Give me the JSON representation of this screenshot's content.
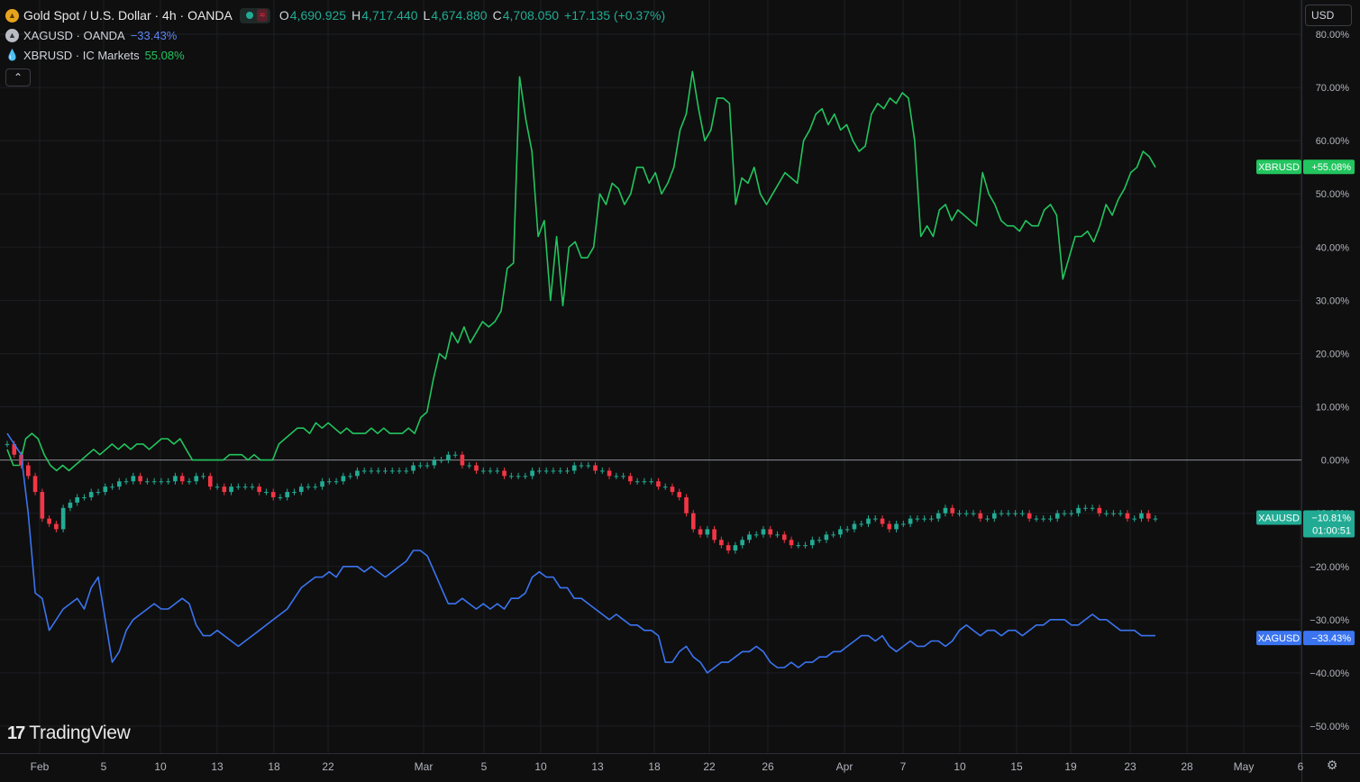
{
  "legend": {
    "main": {
      "title": "Gold Spot / U.S. Dollar · 4h · OANDA",
      "o_key": "O",
      "o_val": "4,690.925",
      "h_key": "H",
      "h_val": "4,717.440",
      "l_key": "L",
      "l_val": "4,674.880",
      "c_key": "C",
      "c_val": "4,708.050",
      "change": "+17.135 (+0.37%)",
      "wave": "≈"
    },
    "xag": {
      "title": "XAGUSD · OANDA",
      "pct": "−33.43%"
    },
    "xbr": {
      "title": "XBRUSD · IC Markets",
      "pct": "55.08%"
    },
    "collapse": "⌃"
  },
  "currency_button": "USD",
  "logo": {
    "mark": "17",
    "text": "TradingView"
  },
  "settings_icon": "gear-icon",
  "colors": {
    "background": "#0f0f0f",
    "xbr": "#22c55e",
    "xag": "#3b74f0",
    "up": "#22ab94",
    "down": "#f23645"
  },
  "chart_data": {
    "type": "line",
    "y_unit": "%",
    "ylim": [
      -50,
      80
    ],
    "y_ticks": [
      "80.00%",
      "70.00%",
      "60.00%",
      "50.00%",
      "40.00%",
      "30.00%",
      "20.00%",
      "10.00%",
      "0.00%",
      "−10.00%",
      "−20.00%",
      "−30.00%",
      "−40.00%",
      "−50.00%"
    ],
    "x_ticks": [
      "Feb",
      "5",
      "10",
      "13",
      "18",
      "22",
      "Mar",
      "5",
      "10",
      "13",
      "18",
      "22",
      "26",
      "Apr",
      "7",
      "10",
      "15",
      "19",
      "23",
      "28",
      "May",
      "6"
    ],
    "series": [
      {
        "name": "XBRUSD",
        "kind": "line",
        "label": "XBRUSD",
        "last_label": "+55.08%",
        "values": [
          2,
          -1,
          -1,
          4,
          5,
          4,
          1,
          -1,
          -2,
          -1,
          -2,
          -1,
          0,
          1,
          2,
          1,
          2,
          3,
          2,
          3,
          2,
          3,
          3,
          2,
          3,
          4,
          4,
          3,
          4,
          2,
          0,
          0,
          0,
          0,
          0,
          0,
          1,
          1,
          1,
          0,
          1,
          0,
          0,
          0,
          3,
          4,
          5,
          6,
          6,
          5,
          7,
          6,
          7,
          6,
          5,
          6,
          5,
          5,
          5,
          6,
          5,
          6,
          5,
          5,
          5,
          6,
          5,
          8,
          9,
          15,
          20,
          19,
          24,
          22,
          25,
          22,
          24,
          26,
          25,
          26,
          28,
          36,
          37,
          72,
          64,
          58,
          42,
          45,
          30,
          42,
          29,
          40,
          41,
          38,
          38,
          40,
          50,
          48,
          52,
          51,
          48,
          50,
          55,
          55,
          52,
          54,
          50,
          52,
          55,
          62,
          65,
          73,
          66,
          60,
          62,
          68,
          68,
          67,
          48,
          53,
          52,
          55,
          50,
          48,
          50,
          52,
          54,
          53,
          52,
          60,
          62,
          65,
          66,
          63,
          65,
          62,
          63,
          60,
          58,
          59,
          65,
          67,
          66,
          68,
          67,
          69,
          68,
          60,
          42,
          44,
          42,
          47,
          48,
          45,
          47,
          46,
          45,
          44,
          54,
          50,
          48,
          45,
          44,
          44,
          43,
          45,
          44,
          44,
          47,
          48,
          46,
          34,
          38,
          42,
          42,
          43,
          41,
          44,
          48,
          46,
          49,
          51,
          54,
          55,
          58,
          57,
          55
        ]
      },
      {
        "name": "XAUUSD",
        "kind": "candles",
        "label": "XAUUSD",
        "last_label": "−10.81%",
        "sub_label": "01:00:51",
        "values": [
          3,
          1,
          -1,
          -3,
          -6,
          -11,
          -12,
          -13,
          -9,
          -8,
          -7,
          -7,
          -6,
          -6,
          -5,
          -5,
          -4,
          -4,
          -3,
          -4,
          -4,
          -4,
          -4,
          -4,
          -3,
          -4,
          -4,
          -3,
          -3,
          -5,
          -5,
          -6,
          -5,
          -5,
          -5,
          -5,
          -6,
          -6,
          -7,
          -7,
          -6,
          -6,
          -5,
          -5,
          -5,
          -4,
          -4,
          -4,
          -3,
          -3,
          -2,
          -2,
          -2,
          -2,
          -2,
          -2,
          -2,
          -2,
          -1,
          -1,
          -1,
          0,
          0,
          1,
          1,
          -1,
          -1,
          -2,
          -2,
          -2,
          -2,
          -3,
          -3,
          -3,
          -3,
          -2,
          -2,
          -2,
          -2,
          -2,
          -2,
          -1,
          -1,
          -1,
          -2,
          -2,
          -3,
          -3,
          -3,
          -4,
          -4,
          -4,
          -4,
          -5,
          -5,
          -6,
          -7,
          -10,
          -13,
          -14,
          -13,
          -15,
          -16,
          -17,
          -16,
          -15,
          -14,
          -14,
          -13,
          -14,
          -14,
          -15,
          -16,
          -16,
          -16,
          -15,
          -15,
          -14,
          -14,
          -13,
          -13,
          -12,
          -12,
          -11,
          -11,
          -12,
          -13,
          -12,
          -12,
          -11,
          -11,
          -11,
          -11,
          -10,
          -9,
          -10,
          -10,
          -10,
          -10,
          -11,
          -11,
          -10,
          -10,
          -10,
          -10,
          -10,
          -11,
          -11,
          -11,
          -11,
          -10,
          -10,
          -10,
          -9,
          -9,
          -9,
          -10,
          -10,
          -10,
          -10,
          -11,
          -11,
          -10,
          -11,
          -11
        ]
      },
      {
        "name": "XAGUSD",
        "kind": "line",
        "label": "XAGUSD",
        "last_label": "−33.43%",
        "values": [
          5,
          3,
          1,
          -10,
          -25,
          -26,
          -32,
          -30,
          -28,
          -27,
          -26,
          -28,
          -24,
          -22,
          -30,
          -38,
          -36,
          -32,
          -30,
          -29,
          -28,
          -27,
          -28,
          -28,
          -27,
          -26,
          -27,
          -31,
          -33,
          -33,
          -32,
          -33,
          -34,
          -35,
          -34,
          -33,
          -32,
          -31,
          -30,
          -29,
          -28,
          -26,
          -24,
          -23,
          -22,
          -22,
          -21,
          -22,
          -20,
          -20,
          -20,
          -21,
          -20,
          -21,
          -22,
          -21,
          -20,
          -19,
          -17,
          -17,
          -18,
          -21,
          -24,
          -27,
          -27,
          -26,
          -27,
          -28,
          -27,
          -28,
          -27,
          -28,
          -26,
          -26,
          -25,
          -22,
          -21,
          -22,
          -22,
          -24,
          -24,
          -26,
          -26,
          -27,
          -28,
          -29,
          -30,
          -29,
          -30,
          -31,
          -31,
          -32,
          -32,
          -33,
          -38,
          -38,
          -36,
          -35,
          -37,
          -38,
          -40,
          -39,
          -38,
          -38,
          -37,
          -36,
          -36,
          -35,
          -36,
          -38,
          -39,
          -39,
          -38,
          -39,
          -38,
          -38,
          -37,
          -37,
          -36,
          -36,
          -35,
          -34,
          -33,
          -33,
          -34,
          -33,
          -35,
          -36,
          -35,
          -34,
          -35,
          -35,
          -34,
          -34,
          -35,
          -34,
          -32,
          -31,
          -32,
          -33,
          -32,
          -32,
          -33,
          -32,
          -32,
          -33,
          -32,
          -31,
          -31,
          -30,
          -30,
          -30,
          -31,
          -31,
          -30,
          -29,
          -30,
          -30,
          -31,
          -32,
          -32,
          -32,
          -33,
          -33,
          -33
        ]
      }
    ]
  }
}
